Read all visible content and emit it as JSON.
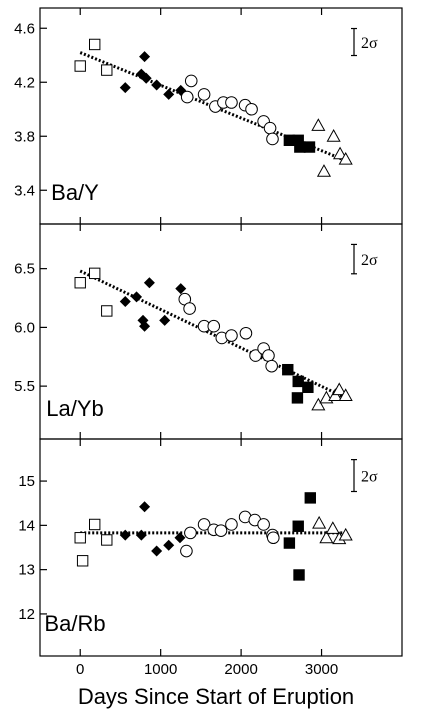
{
  "chart_data": [
    {
      "type": "scatter",
      "label": "Ba/Y",
      "xlim": [
        -500,
        4000
      ],
      "ylim": [
        3.15,
        4.75
      ],
      "yticks": [
        "3.4",
        "3.8",
        "4.2",
        "4.6"
      ],
      "error_bar_label": "2σ",
      "error_bar_height": 0.2,
      "trend": [
        [
          0,
          4.42
        ],
        [
          3300,
          3.62
        ]
      ],
      "series": [
        {
          "marker": "open-square",
          "points": [
            [
              0,
              4.32
            ],
            [
              180,
              4.48
            ],
            [
              330,
              4.29
            ]
          ]
        },
        {
          "marker": "filled-diamond",
          "points": [
            [
              560,
              4.16
            ],
            [
              760,
              4.26
            ],
            [
              800,
              4.39
            ],
            [
              820,
              4.23
            ],
            [
              950,
              4.18
            ],
            [
              1100,
              4.11
            ],
            [
              1250,
              4.14
            ]
          ]
        },
        {
          "marker": "open-circle",
          "points": [
            [
              1330,
              4.09
            ],
            [
              1380,
              4.21
            ],
            [
              1540,
              4.11
            ],
            [
              1680,
              4.02
            ],
            [
              1780,
              4.05
            ],
            [
              1880,
              4.05
            ],
            [
              2050,
              4.03
            ],
            [
              2130,
              4.0
            ],
            [
              2280,
              3.91
            ],
            [
              2360,
              3.86
            ],
            [
              2390,
              3.78
            ]
          ]
        },
        {
          "marker": "filled-square",
          "points": [
            [
              2600,
              3.77
            ],
            [
              2710,
              3.77
            ],
            [
              2730,
              3.72
            ],
            [
              2850,
              3.72
            ]
          ]
        },
        {
          "marker": "open-triangle",
          "points": [
            [
              2960,
              3.88
            ],
            [
              3030,
              3.54
            ],
            [
              3150,
              3.8
            ],
            [
              3230,
              3.67
            ],
            [
              3300,
              3.63
            ]
          ]
        }
      ]
    },
    {
      "type": "scatter",
      "label": "La/Yb",
      "xlim": [
        -500,
        4000
      ],
      "ylim": [
        5.05,
        6.88
      ],
      "yticks": [
        "5.5",
        "6.0",
        "6.5"
      ],
      "error_bar_label": "2σ",
      "error_bar_height": 0.25,
      "trend": [
        [
          0,
          6.48
        ],
        [
          3300,
          5.4
        ]
      ],
      "series": [
        {
          "marker": "open-square",
          "points": [
            [
              0,
              6.38
            ],
            [
              180,
              6.46
            ],
            [
              330,
              6.14
            ]
          ]
        },
        {
          "marker": "filled-diamond",
          "points": [
            [
              560,
              6.22
            ],
            [
              700,
              6.26
            ],
            [
              780,
              6.06
            ],
            [
              800,
              6.01
            ],
            [
              860,
              6.38
            ],
            [
              1050,
              6.06
            ],
            [
              1250,
              6.33
            ]
          ]
        },
        {
          "marker": "open-circle",
          "points": [
            [
              1300,
              6.24
            ],
            [
              1360,
              6.16
            ],
            [
              1540,
              6.01
            ],
            [
              1660,
              6.01
            ],
            [
              1760,
              5.91
            ],
            [
              1880,
              5.93
            ],
            [
              2060,
              5.95
            ],
            [
              2180,
              5.76
            ],
            [
              2280,
              5.82
            ],
            [
              2340,
              5.76
            ],
            [
              2380,
              5.67
            ]
          ]
        },
        {
          "marker": "filled-square",
          "points": [
            [
              2580,
              5.64
            ],
            [
              2710,
              5.54
            ],
            [
              2700,
              5.4
            ],
            [
              2830,
              5.49
            ]
          ]
        },
        {
          "marker": "open-triangle",
          "points": [
            [
              2960,
              5.34
            ],
            [
              3060,
              5.4
            ],
            [
              3170,
              5.42
            ],
            [
              3220,
              5.47
            ],
            [
              3300,
              5.42
            ]
          ]
        }
      ]
    },
    {
      "type": "scatter",
      "label": "Ba/Rb",
      "xlim": [
        -500,
        4000
      ],
      "ylim": [
        11.05,
        15.95
      ],
      "yticks": [
        "12",
        "13",
        "14",
        "15"
      ],
      "xticks": [
        "0",
        "1000",
        "2000",
        "3000"
      ],
      "xlabel": "Days Since Start of Eruption",
      "error_bar_label": "2σ",
      "error_bar_height": 0.72,
      "trend": [
        [
          0,
          13.83
        ],
        [
          3300,
          13.83
        ]
      ],
      "series": [
        {
          "marker": "open-square",
          "points": [
            [
              0,
              13.72
            ],
            [
              30,
              13.2
            ],
            [
              180,
              14.02
            ],
            [
              330,
              13.67
            ]
          ]
        },
        {
          "marker": "filled-diamond",
          "points": [
            [
              560,
              13.78
            ],
            [
              760,
              13.78
            ],
            [
              800,
              14.42
            ],
            [
              950,
              13.42
            ],
            [
              1100,
              13.55
            ],
            [
              1240,
              13.72
            ]
          ]
        },
        {
          "marker": "open-circle",
          "points": [
            [
              1320,
              13.42
            ],
            [
              1370,
              13.83
            ],
            [
              1540,
              14.02
            ],
            [
              1660,
              13.9
            ],
            [
              1750,
              13.88
            ],
            [
              1880,
              14.02
            ],
            [
              2050,
              14.19
            ],
            [
              2170,
              14.12
            ],
            [
              2280,
              14.02
            ],
            [
              2390,
              13.78
            ],
            [
              2400,
              13.72
            ]
          ]
        },
        {
          "marker": "filled-square",
          "points": [
            [
              2600,
              13.6
            ],
            [
              2710,
              13.98
            ],
            [
              2720,
              12.88
            ],
            [
              2860,
              14.62
            ]
          ]
        },
        {
          "marker": "open-triangle",
          "points": [
            [
              2970,
              14.05
            ],
            [
              3060,
              13.72
            ],
            [
              3140,
              13.93
            ],
            [
              3220,
              13.7
            ],
            [
              3300,
              13.78
            ]
          ]
        }
      ]
    }
  ]
}
